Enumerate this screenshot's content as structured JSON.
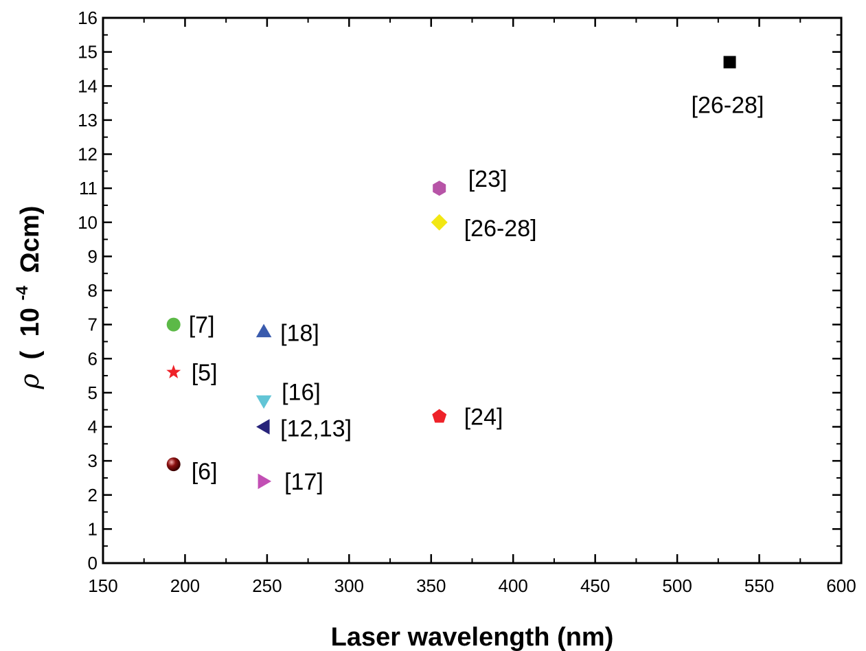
{
  "chart_data": {
    "type": "scatter",
    "xlabel": "Laser wavelength (nm)",
    "ylabel": {
      "symbol": "ρ",
      "open_paren": "(",
      "base": "10",
      "exponent": "-4",
      "unit": "Ωcm)"
    },
    "xlim": [
      150,
      600
    ],
    "ylim": [
      0,
      16
    ],
    "x_ticks": [
      150,
      200,
      250,
      300,
      350,
      400,
      450,
      500,
      550,
      600
    ],
    "y_ticks": [
      0,
      1,
      2,
      3,
      4,
      5,
      6,
      7,
      8,
      9,
      10,
      11,
      12,
      13,
      14,
      15,
      16
    ],
    "grid": false,
    "points": [
      {
        "x": 193,
        "y": 7.0,
        "label": "[7]",
        "marker": "circle",
        "color": "#5cb947"
      },
      {
        "x": 193,
        "y": 5.6,
        "label": "[5]",
        "marker": "star",
        "color": "#ee2229"
      },
      {
        "x": 193,
        "y": 2.9,
        "label": "[6]",
        "marker": "sphere",
        "color": "#8b1010"
      },
      {
        "x": 248,
        "y": 6.8,
        "label": "[18]",
        "marker": "triangle-up",
        "color": "#3a5bad"
      },
      {
        "x": 248,
        "y": 4.75,
        "label": "[16]",
        "marker": "triangle-down",
        "color": "#62c5d6"
      },
      {
        "x": 248,
        "y": 4.0,
        "label": "[12,13]",
        "marker": "triangle-left",
        "color": "#27237a"
      },
      {
        "x": 248,
        "y": 2.4,
        "label": "[17]",
        "marker": "triangle-right",
        "color": "#c24fb4"
      },
      {
        "x": 355,
        "y": 11.0,
        "label": "[23]",
        "marker": "hexagon",
        "color": "#b754a7"
      },
      {
        "x": 355,
        "y": 10.0,
        "label": "[26-28]",
        "marker": "diamond",
        "color": "#f2e713"
      },
      {
        "x": 355,
        "y": 4.3,
        "label": "[24]",
        "marker": "pentagon",
        "color": "#ee2229"
      },
      {
        "x": 532,
        "y": 14.7,
        "label": "[26-28]",
        "marker": "square",
        "color": "#000000"
      }
    ]
  }
}
